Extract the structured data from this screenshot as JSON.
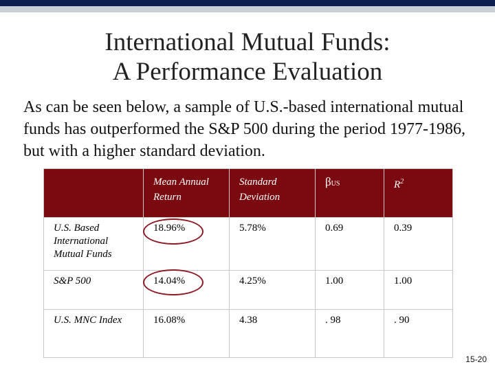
{
  "slide": {
    "title_line1": "International Mutual Funds:",
    "title_line2": "A Performance Evaluation",
    "intro": "As can be seen below, a sample of U.S.-based international mutual funds has outperformed the S&P 500 during the period 1977-1986, but with a higher standard deviation.",
    "page_number": "15-20"
  },
  "table": {
    "headers": {
      "col0": "",
      "col1": "Mean Annual Return",
      "col2": "Standard Deviation",
      "col3_symbol": "β",
      "col3_sub": "US",
      "col4_main": "R",
      "col4_sup": "2"
    },
    "rows": [
      {
        "label": "U.S. Based International Mutual Funds",
        "mean_return": "18.96%",
        "std_dev": "5.78%",
        "beta": "0.69",
        "r2": "0.39"
      },
      {
        "label": "S&P 500",
        "mean_return": "14.04%",
        "std_dev": "4.25%",
        "beta": "1.00",
        "r2": "1.00"
      },
      {
        "label": "U.S. MNC Index",
        "mean_return": "16.08%",
        "std_dev": "4.38",
        "beta": ". 98",
        "r2": ". 90"
      }
    ]
  },
  "colors": {
    "header_bg": "#7a0a0f",
    "circle": "#8b1a24",
    "top_bar": "#0b1f4f"
  }
}
